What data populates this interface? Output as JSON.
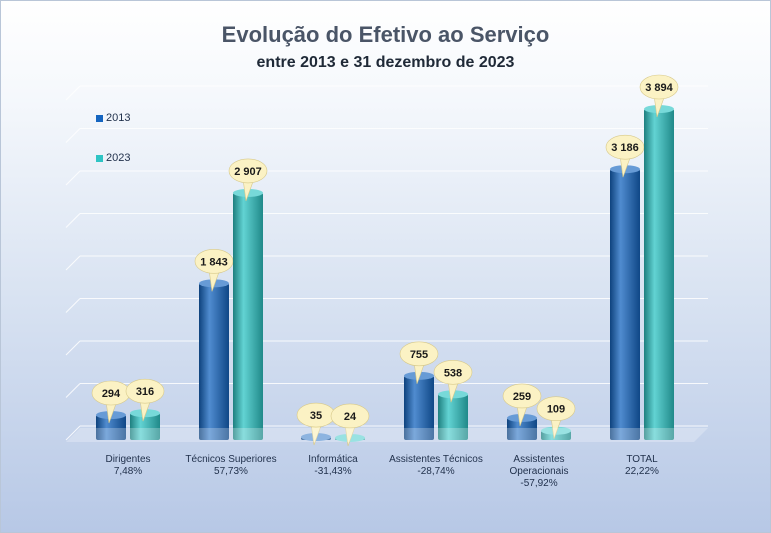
{
  "title": "Evolução do Efetivo ao Serviço",
  "subtitle": "entre 2013 e 31 dezembro de 2023",
  "colors": {
    "series_2013": "#1565c0",
    "series_2023": "#2ec4c4",
    "callout": "#fbf2c4"
  },
  "chart_data": {
    "type": "bar",
    "categories": [
      "Dirigentes",
      "Técnicos Superiores",
      "Informática",
      "Assistentes Técnicos",
      "Assistentes Operacionais",
      "TOTAL"
    ],
    "change_labels": [
      "7,48%",
      "57,73%",
      "-31,43%",
      "-28,74%",
      "-57,92%",
      "22,22%"
    ],
    "series": [
      {
        "name": "2013",
        "values": [
          294,
          1843,
          35,
          755,
          259,
          3186
        ],
        "labels": [
          "294",
          "1 843",
          "35",
          "755",
          "259",
          "3 186"
        ]
      },
      {
        "name": "2023",
        "values": [
          316,
          2907,
          24,
          538,
          109,
          3894
        ],
        "labels": [
          "316",
          "2 907",
          "24",
          "538",
          "109",
          "3 894"
        ]
      }
    ],
    "ylim": [
      0,
      4000
    ],
    "legend_position": "top-left",
    "grid": true
  }
}
